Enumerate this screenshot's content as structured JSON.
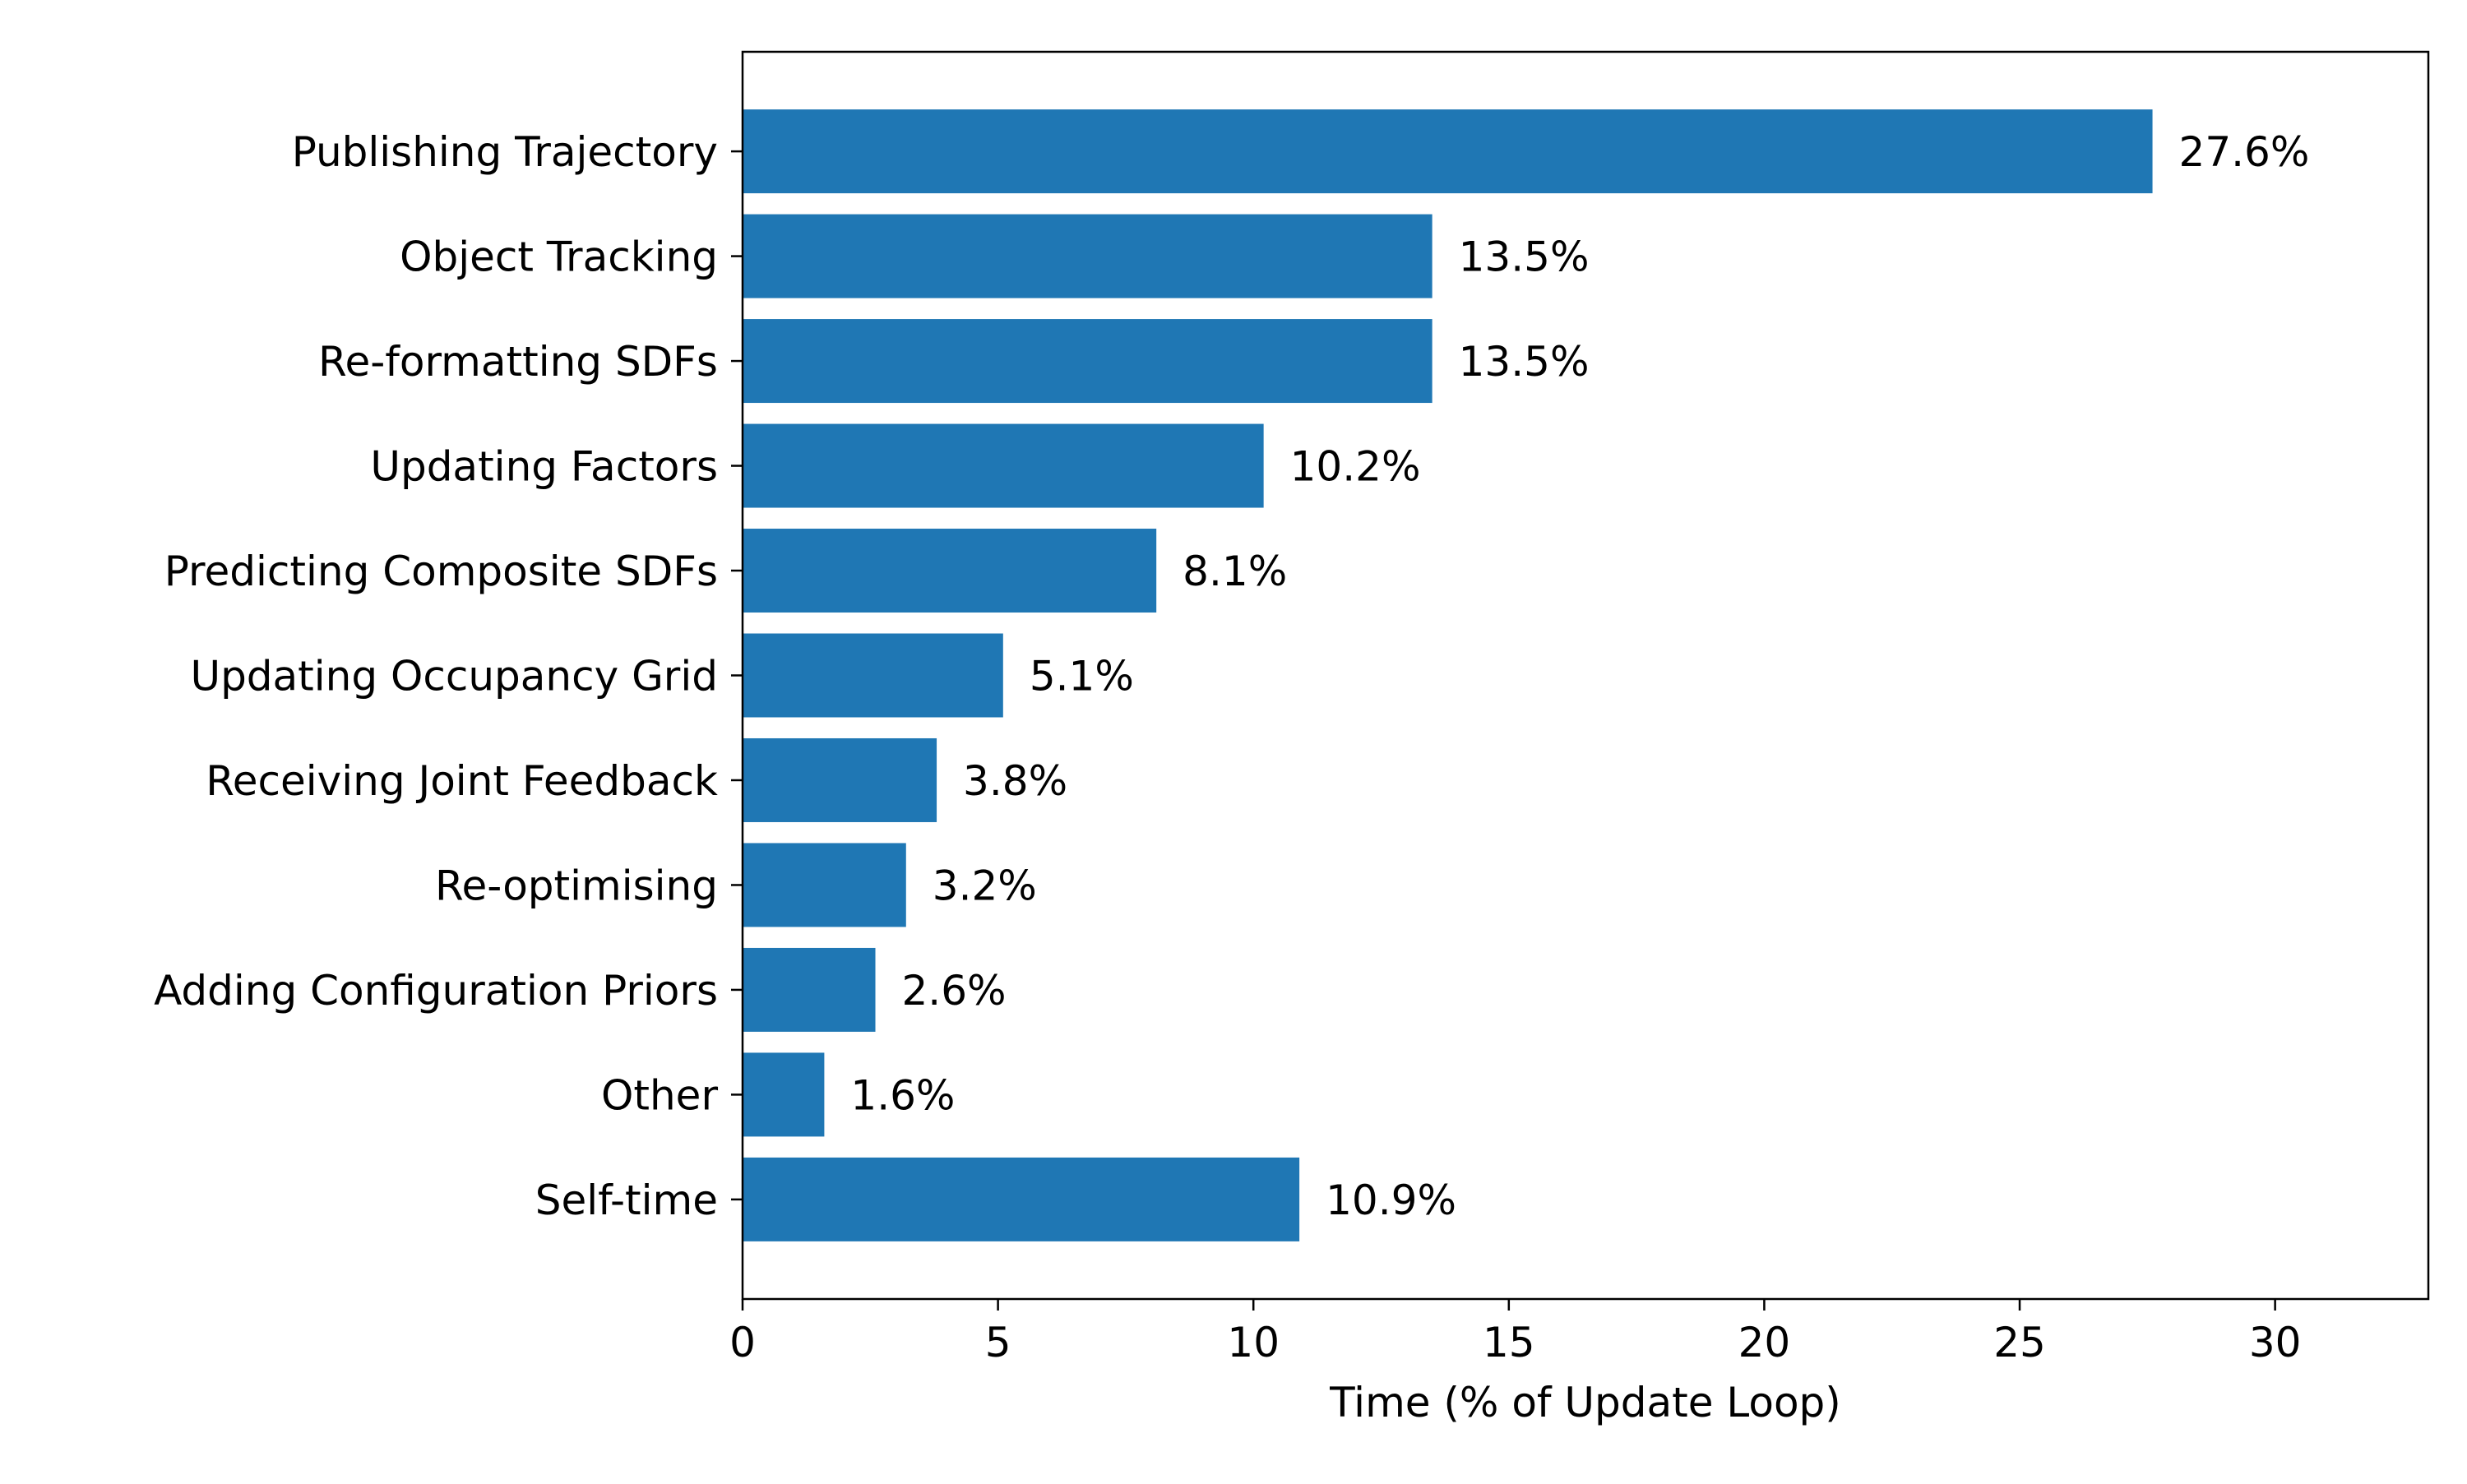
{
  "chart_data": {
    "type": "bar",
    "orientation": "horizontal",
    "categories": [
      "Publishing Trajectory",
      "Object Tracking",
      "Re-formatting SDFs",
      "Updating Factors",
      "Predicting Composite SDFs",
      "Updating Occupancy Grid",
      "Receiving Joint Feedback",
      "Re-optimising",
      "Adding Configuration Priors",
      "Other",
      "Self-time"
    ],
    "values": [
      27.6,
      13.5,
      13.5,
      10.2,
      8.1,
      5.1,
      3.8,
      3.2,
      2.6,
      1.6,
      10.9
    ],
    "data_labels": [
      "27.6%",
      "13.5%",
      "13.5%",
      "10.2%",
      "8.1%",
      "5.1%",
      "3.8%",
      "3.2%",
      "2.6%",
      "1.6%",
      "10.9%"
    ],
    "title": "",
    "xlabel": "Time (% of Update Loop)",
    "ylabel": "",
    "xlim": [
      0,
      33
    ],
    "xticks": [
      0,
      5,
      10,
      15,
      20,
      25,
      30
    ],
    "xtick_labels": [
      "0",
      "5",
      "10",
      "15",
      "20",
      "25",
      "30"
    ],
    "grid": false,
    "bar_color": "#1f77b4"
  }
}
